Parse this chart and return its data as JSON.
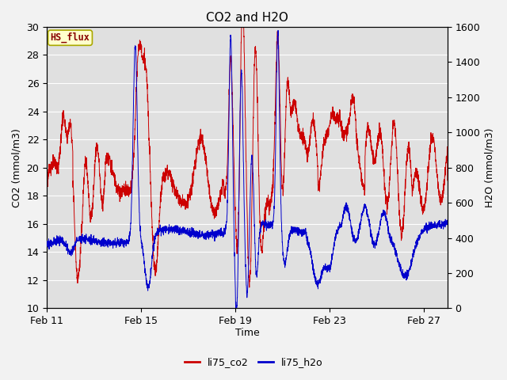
{
  "title": "CO2 and H2O",
  "xlabel": "Time",
  "ylabel_left": "CO2 (mmol/m3)",
  "ylabel_right": "H2O (mmol/m3)",
  "ylim_left": [
    10,
    30
  ],
  "ylim_right": [
    0,
    1600
  ],
  "yticks_left": [
    10,
    12,
    14,
    16,
    18,
    20,
    22,
    24,
    26,
    28,
    30
  ],
  "yticks_right": [
    0,
    200,
    400,
    600,
    800,
    1000,
    1200,
    1400,
    1600
  ],
  "xtick_labels": [
    "Feb 11",
    "Feb 15",
    "Feb 19",
    "Feb 23",
    "Feb 27"
  ],
  "xtick_positions": [
    0,
    4,
    8,
    12,
    16
  ],
  "legend_labels": [
    "li75_co2",
    "li75_h2o"
  ],
  "box_label": "HS_flux",
  "box_facecolor": "#ffffcc",
  "box_edgecolor": "#aaa800",
  "box_textcolor": "#880000",
  "line_co2_color": "#cc0000",
  "line_h2o_color": "#0000cc",
  "background_color": "#e0e0e0",
  "grid_color": "#ffffff",
  "fig_facecolor": "#f2f2f2",
  "title_fontsize": 11,
  "axis_fontsize": 9,
  "tick_fontsize": 9,
  "legend_fontsize": 9
}
